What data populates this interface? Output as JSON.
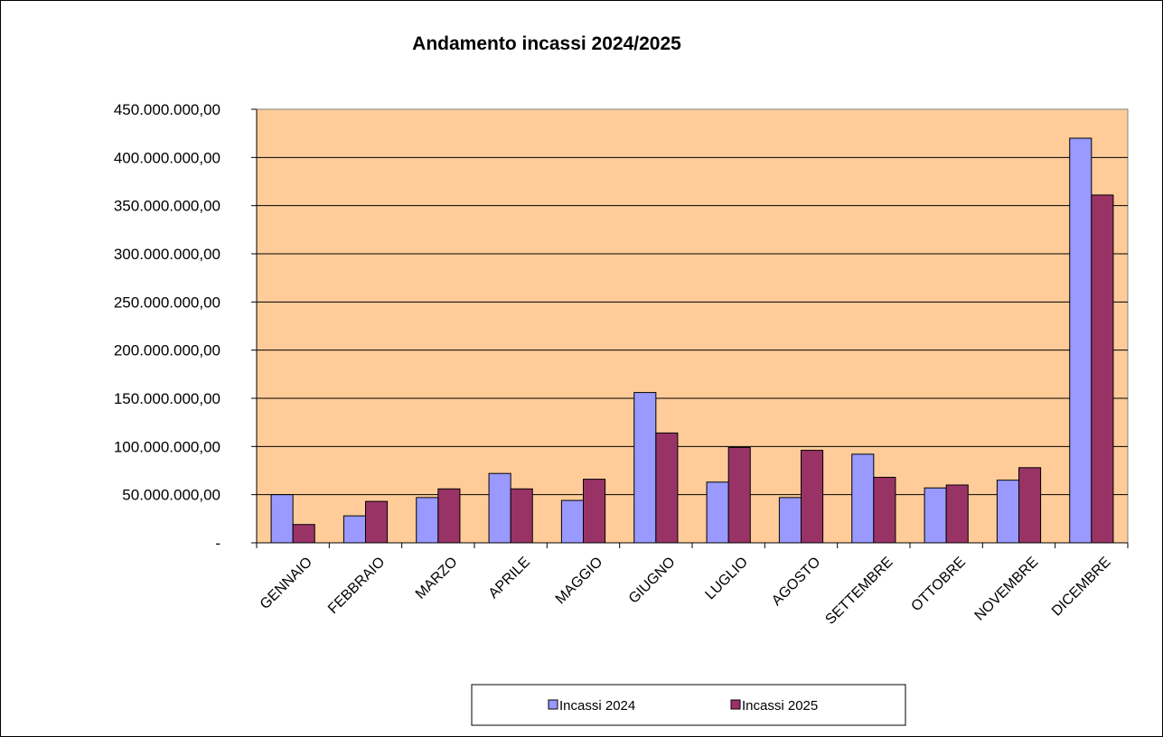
{
  "chart_data": {
    "type": "bar",
    "title": "Andamento  incassi  2024/2025",
    "xlabel": "",
    "ylabel": "",
    "categories": [
      "GENNAIO",
      "FEBBRAIO",
      "MARZO",
      "APRILE",
      "MAGGIO",
      "GIUGNO",
      "LUGLIO",
      "AGOSTO",
      "SETTEMBRE",
      "OTTOBRE",
      "NOVEMBRE",
      "DICEMBRE"
    ],
    "series": [
      {
        "name": "Incassi 2024",
        "color": "#9999ff",
        "values": [
          50000000,
          28000000,
          47000000,
          72000000,
          44000000,
          156000000,
          63000000,
          47000000,
          92000000,
          57000000,
          65000000,
          420000000
        ]
      },
      {
        "name": "Incassi 2025",
        "color": "#993366",
        "values": [
          19000000,
          43000000,
          56000000,
          56000000,
          66000000,
          114000000,
          99000000,
          96000000,
          68000000,
          60000000,
          78000000,
          361000000
        ]
      }
    ],
    "ylim": [
      0,
      450000000
    ],
    "y_tick_labels": [
      "-",
      "50.000.000,00",
      "100.000.000,00",
      "150.000.000,00",
      "200.000.000,00",
      "250.000.000,00",
      "300.000.000,00",
      "350.000.000,00",
      "400.000.000,00",
      "450.000.000,00"
    ],
    "grid": true,
    "plot_background": "#ffcc99",
    "legend_position": "bottom"
  }
}
